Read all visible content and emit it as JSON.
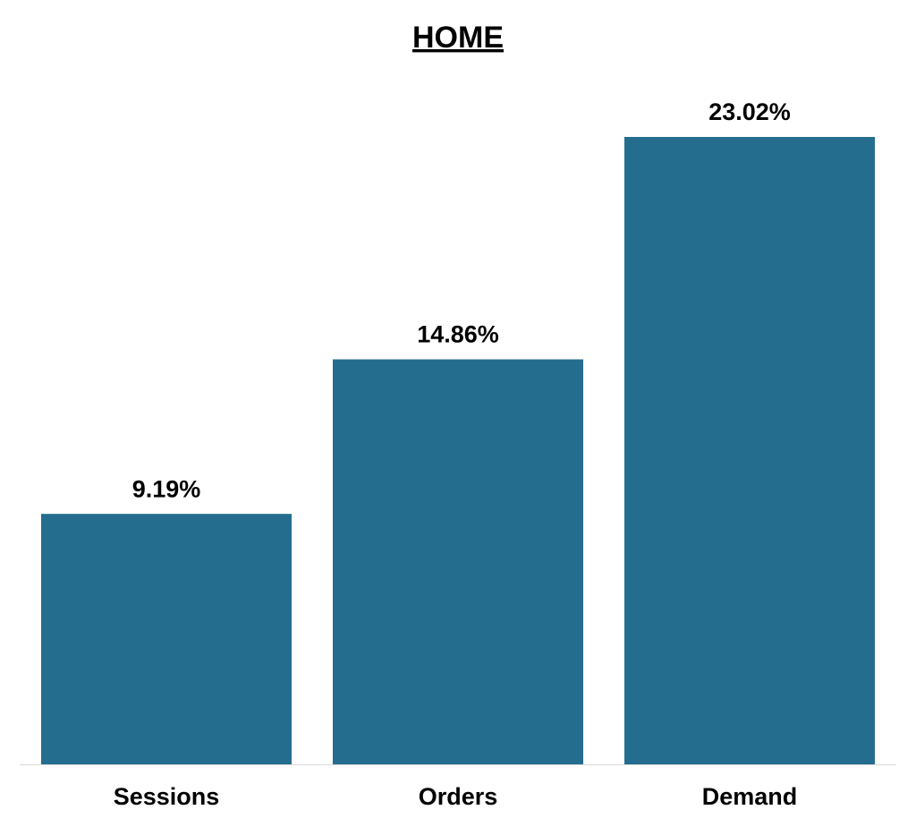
{
  "chart_data": {
    "type": "bar",
    "title": "HOME",
    "categories": [
      "Sessions",
      "Orders",
      "Demand"
    ],
    "values": [
      9.19,
      14.86,
      23.02
    ],
    "value_labels": [
      "9.19%",
      "14.86%",
      "23.02%"
    ],
    "color": "#256d8f"
  }
}
